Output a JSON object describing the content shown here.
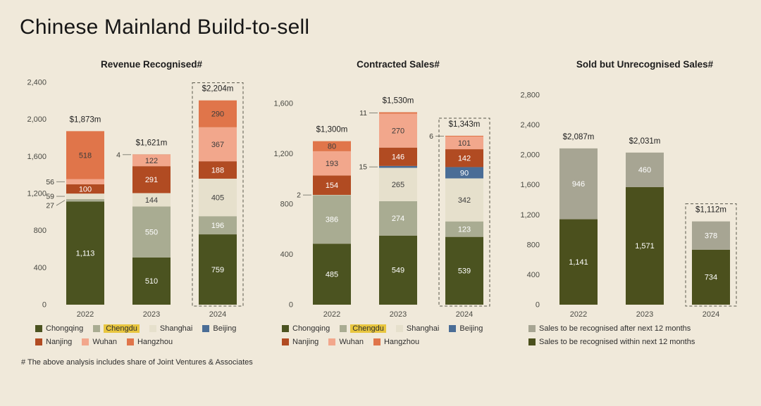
{
  "page": {
    "title": "Chinese Mainland Build-to-sell",
    "footnote": "# The above analysis includes share of Joint Ventures & Associates"
  },
  "colors": {
    "background": "#f0e9da",
    "legend_highlight": "#e8c63f"
  },
  "chart_data": [
    {
      "type": "bar",
      "stacked": true,
      "title": "Revenue Recognised#",
      "categories": [
        "2022",
        "2023",
        "2024"
      ],
      "ylim": [
        0,
        2400
      ],
      "yticks": [
        0,
        400,
        800,
        1200,
        1600,
        2000,
        2400
      ],
      "totals": [
        "$1,873m",
        "$1,621m",
        "$2,204m"
      ],
      "highlight_last": true,
      "legend_highlight": "Chengdu",
      "legend_rows": [
        [
          "Chongqing",
          "Chengdu",
          "Shanghai",
          "Beijing"
        ],
        [
          "Nanjing",
          "Wuhan",
          "Hangzhou"
        ]
      ],
      "series": [
        {
          "name": "Chongqing",
          "color": "#4b5320",
          "text": "#ffffff",
          "values": [
            1113,
            510,
            759
          ]
        },
        {
          "name": "Chengdu",
          "color": "#a9ac92",
          "text": "#ffffff",
          "values": [
            27,
            550,
            196
          ]
        },
        {
          "name": "Shanghai",
          "color": "#e6e0cc",
          "text": "#3c3c3c",
          "values": [
            59,
            144,
            405
          ]
        },
        {
          "name": "Beijing",
          "color": "#4a6d96",
          "text": "#ffffff",
          "values": [
            0,
            0,
            0
          ]
        },
        {
          "name": "Nanjing",
          "color": "#b14b22",
          "text": "#ffffff",
          "values": [
            100,
            291,
            188
          ]
        },
        {
          "name": "Wuhan",
          "color": "#f2a78c",
          "text": "#3c3c3c",
          "values": [
            56,
            122,
            367
          ]
        },
        {
          "name": "Hangzhou",
          "color": "#e0754a",
          "text": "#3c3c3c",
          "values": [
            518,
            4,
            290
          ]
        }
      ]
    },
    {
      "type": "bar",
      "stacked": true,
      "title": "Contracted Sales#",
      "categories": [
        "2022",
        "2023",
        "2024"
      ],
      "ylim": [
        0,
        1600
      ],
      "yticks": [
        0,
        400,
        800,
        1200,
        1600
      ],
      "totals": [
        "$1,300m",
        "$1,530m",
        "$1,343m"
      ],
      "highlight_last": true,
      "legend_highlight": "Chengdu",
      "legend_rows": [
        [
          "Chongqing",
          "Chengdu",
          "Shanghai",
          "Beijing"
        ],
        [
          "Nanjing",
          "Wuhan",
          "Hangzhou"
        ]
      ],
      "series": [
        {
          "name": "Chongqing",
          "color": "#4b5320",
          "text": "#ffffff",
          "values": [
            485,
            549,
            539
          ]
        },
        {
          "name": "Chengdu",
          "color": "#a9ac92",
          "text": "#ffffff",
          "values": [
            386,
            274,
            123
          ]
        },
        {
          "name": "Shanghai",
          "color": "#e6e0cc",
          "text": "#3c3c3c",
          "values": [
            2,
            265,
            342
          ]
        },
        {
          "name": "Beijing",
          "color": "#4a6d96",
          "text": "#ffffff",
          "values": [
            0,
            15,
            90
          ]
        },
        {
          "name": "Nanjing",
          "color": "#b14b22",
          "text": "#ffffff",
          "values": [
            154,
            146,
            142
          ]
        },
        {
          "name": "Wuhan",
          "color": "#f2a78c",
          "text": "#3c3c3c",
          "values": [
            193,
            270,
            101
          ]
        },
        {
          "name": "Hangzhou",
          "color": "#e0754a",
          "text": "#3c3c3c",
          "values": [
            80,
            11,
            6
          ]
        }
      ]
    },
    {
      "type": "bar",
      "stacked": true,
      "title": "Sold but Unrecognised Sales#",
      "categories": [
        "2022",
        "2023",
        "2024"
      ],
      "ylim": [
        0,
        2800
      ],
      "yticks": [
        0,
        400,
        800,
        1200,
        1600,
        2000,
        2400,
        2800
      ],
      "totals": [
        "$2,087m",
        "$2,031m",
        "$1,112m"
      ],
      "highlight_last": true,
      "legend_rows": [
        [
          "Sales to be recognised after next 12 months"
        ],
        [
          "Sales to be recognised within next 12 months"
        ]
      ],
      "series": [
        {
          "name": "Sales to be recognised within next 12 months",
          "color": "#4b501d",
          "text": "#ffffff",
          "values": [
            1141,
            1571,
            734
          ]
        },
        {
          "name": "Sales to be recognised after next 12 months",
          "color": "#a7a593",
          "text": "#ffffff",
          "values": [
            946,
            460,
            378
          ]
        }
      ]
    }
  ]
}
